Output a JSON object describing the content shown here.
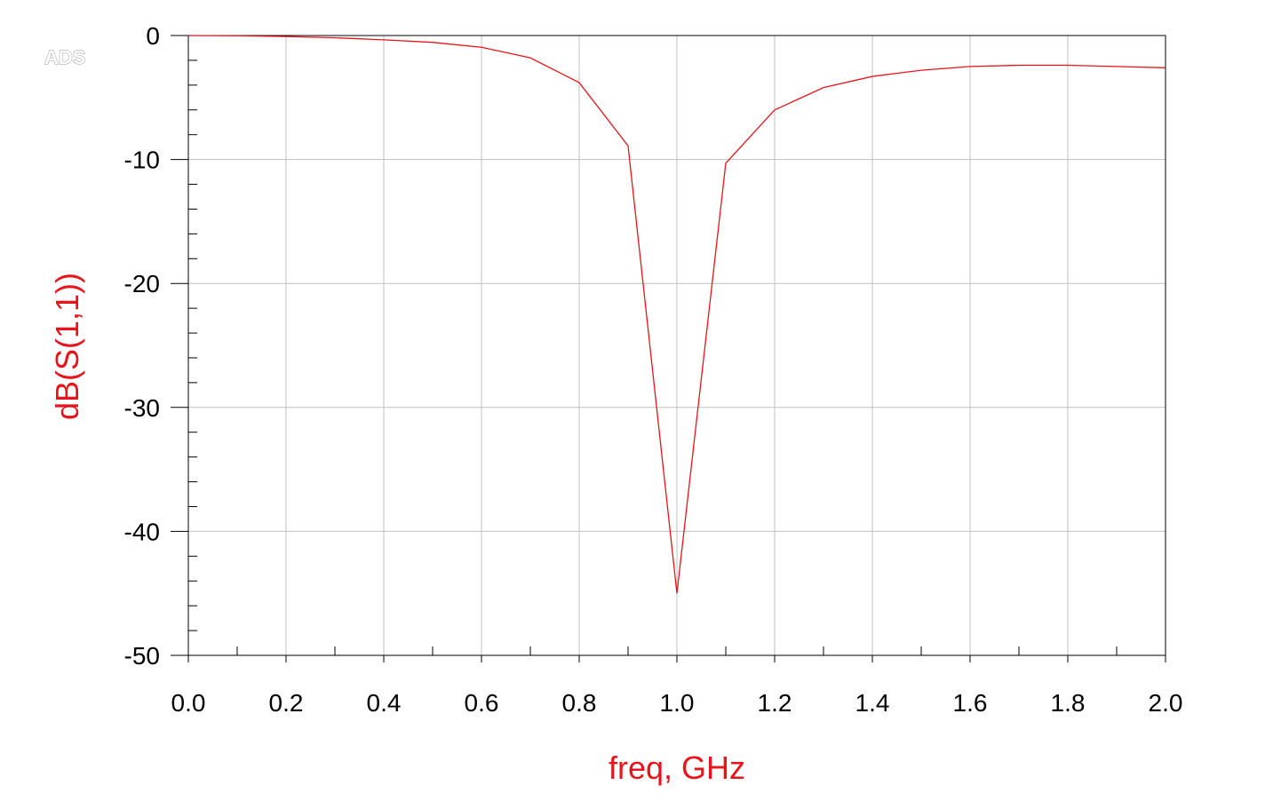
{
  "watermark": "ADS",
  "chart_data": {
    "type": "line",
    "xlabel": "freq, GHz",
    "ylabel": "dB(S(1,1))",
    "xlim": [
      0.0,
      2.0
    ],
    "ylim": [
      -50,
      0
    ],
    "x_ticks": [
      "0.0",
      "0.2",
      "0.4",
      "0.6",
      "0.8",
      "1.0",
      "1.2",
      "1.4",
      "1.6",
      "1.8",
      "2.0"
    ],
    "y_ticks": [
      "0",
      "-10",
      "-20",
      "-30",
      "-40",
      "-50"
    ],
    "grid": true,
    "series": [
      {
        "color": "#e8141c",
        "x": [
          0.0,
          0.1,
          0.2,
          0.3,
          0.4,
          0.5,
          0.6,
          0.7,
          0.8,
          0.9,
          1.0,
          1.1,
          1.2,
          1.3,
          1.4,
          1.5,
          1.6,
          1.7,
          1.8,
          1.9,
          2.0
        ],
        "y": [
          0.0,
          -0.02,
          -0.08,
          -0.18,
          -0.35,
          -0.55,
          -0.95,
          -1.8,
          -3.8,
          -8.9,
          -45.0,
          -10.3,
          -6.0,
          -4.2,
          -3.3,
          -2.8,
          -2.5,
          -2.4,
          -2.4,
          -2.5,
          -2.6
        ]
      }
    ]
  },
  "colors": {
    "axis_title": "#e8141c",
    "grid": "#c0c0c0",
    "axis": "#000000"
  }
}
